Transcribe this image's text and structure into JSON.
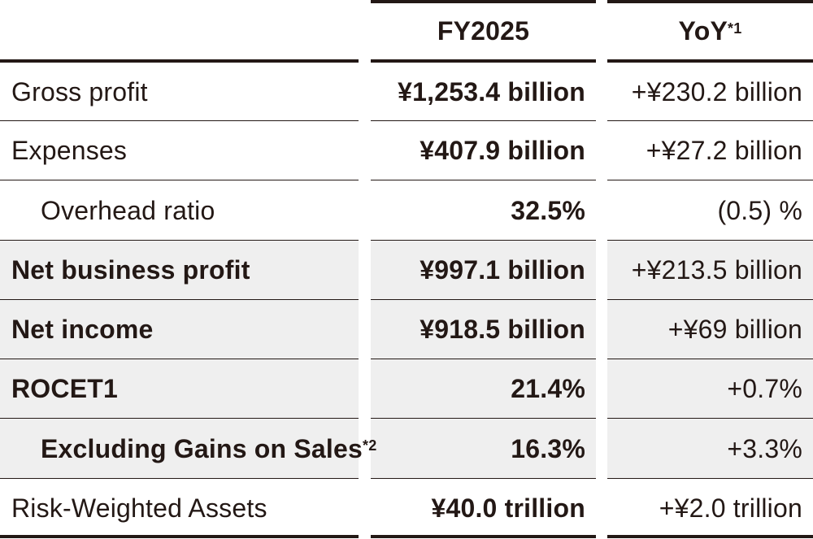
{
  "header": {
    "col1": "",
    "col2": "FY2025",
    "col3": "YoY",
    "col3_note": "*1"
  },
  "rows": [
    {
      "label": "Gross profit",
      "label_note": "",
      "fy2025": "¥1,253.4 billion",
      "yoy": "+¥230.2 billion",
      "emphasis": false,
      "indent": false,
      "shaded": false
    },
    {
      "label": "Expenses",
      "label_note": "",
      "fy2025": "¥407.9 billion",
      "yoy": "+¥27.2 billion",
      "emphasis": false,
      "indent": false,
      "shaded": false
    },
    {
      "label": "Overhead ratio",
      "label_note": "",
      "fy2025": "32.5%",
      "yoy": "(0.5) %",
      "emphasis": false,
      "indent": true,
      "shaded": false
    },
    {
      "label": "Net business profit",
      "label_note": "",
      "fy2025": "¥997.1 billion",
      "yoy": "+¥213.5 billion",
      "emphasis": true,
      "indent": false,
      "shaded": true
    },
    {
      "label": "Net income",
      "label_note": "",
      "fy2025": "¥918.5 billion",
      "yoy": "+¥69 billion",
      "emphasis": true,
      "indent": false,
      "shaded": true
    },
    {
      "label": "ROCET1",
      "label_note": "",
      "fy2025": "21.4%",
      "yoy": "+0.7%",
      "emphasis": true,
      "indent": false,
      "shaded": true
    },
    {
      "label": "Excluding Gains on Sales",
      "label_note": "*2",
      "fy2025": "16.3%",
      "yoy": "+3.3%",
      "emphasis": true,
      "indent": true,
      "shaded": true
    },
    {
      "label": "Risk-Weighted Assets",
      "label_note": "",
      "fy2025": "¥40.0 trillion",
      "yoy": "+¥2.0 trillion",
      "emphasis": false,
      "indent": false,
      "shaded": false
    }
  ]
}
